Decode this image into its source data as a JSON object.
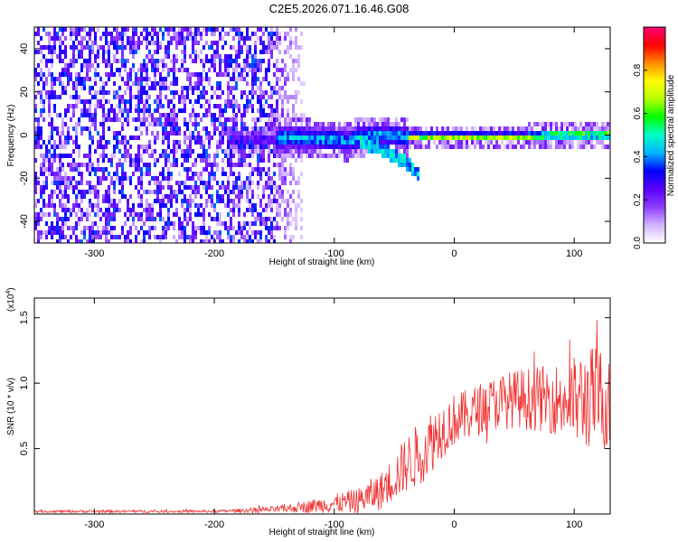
{
  "title": "C2E5.2026.071.16.46.G08",
  "chart_data": [
    {
      "type": "heatmap",
      "xlabel": "Height of straight line (km)",
      "ylabel": "Frequency (Hz)",
      "xlim": [
        -350,
        130
      ],
      "ylim": [
        -50,
        50
      ],
      "xticks": [
        -300,
        -200,
        -100,
        0,
        100
      ],
      "yticks": [
        -40,
        -20,
        0,
        20,
        40
      ],
      "colorbar": {
        "label": "Normalized spectral amplitude",
        "range": [
          0,
          1
        ],
        "ticks": [
          "0.0",
          "0.2",
          "0.4",
          "0.6",
          "0.8"
        ],
        "tick_values": [
          0,
          0.2,
          0.4,
          0.6,
          0.8
        ],
        "colors": [
          "#ffffff",
          "#d2b4ff",
          "#8c3cff",
          "#5a00ff",
          "#0000ff",
          "#00b4ff",
          "#00ffc8",
          "#00ff00",
          "#b4ff00",
          "#ffff00",
          "#ff8c00",
          "#ff0000",
          "#ff0078"
        ]
      },
      "ridge": {
        "x": [
          -185,
          -160,
          -150,
          -140,
          -130,
          -120,
          -110,
          -100,
          -90,
          -80,
          -70,
          -60,
          -50,
          -40,
          -30,
          -20,
          -10,
          0,
          20,
          40,
          60,
          80,
          100,
          120,
          130
        ],
        "y": [
          -2,
          -1,
          -1,
          0,
          0,
          -1,
          -1,
          -1,
          -2,
          0,
          1,
          1,
          1,
          0,
          0,
          0,
          0,
          0,
          0,
          0,
          0,
          1,
          1,
          1,
          1
        ]
      },
      "branch": {
        "x": [
          -80,
          -70,
          -60,
          -50,
          -40,
          -35,
          -30
        ],
        "y": [
          -2,
          -4,
          -6,
          -9,
          -12,
          -15,
          -18
        ]
      }
    },
    {
      "type": "line",
      "xlabel": "Height of straight line (km)",
      "ylabel": "SNR (10 * v/v)",
      "yscale_label": "(x10",
      "yscale_exp": "4",
      "yscale_close": ")",
      "xlim": [
        -350,
        130
      ],
      "ylim": [
        0,
        1.65
      ],
      "xticks": [
        -300,
        -200,
        -100,
        0,
        100
      ],
      "yticks": [
        "0.5",
        "1.0",
        "1.5"
      ],
      "ytick_values": [
        0.5,
        1.0,
        1.5
      ],
      "series": [
        {
          "color": "#f03030",
          "x": [
            -350,
            -300,
            -250,
            -200,
            -160,
            -140,
            -120,
            -100,
            -80,
            -60,
            -50,
            -40,
            -30,
            -20,
            -10,
            0,
            10,
            20,
            30,
            40,
            50,
            60,
            70,
            80,
            90,
            100,
            110,
            120,
            130
          ],
          "y": [
            0.02,
            0.02,
            0.02,
            0.02,
            0.03,
            0.04,
            0.06,
            0.08,
            0.1,
            0.18,
            0.28,
            0.38,
            0.45,
            0.55,
            0.65,
            0.72,
            0.75,
            0.8,
            0.84,
            0.86,
            0.88,
            0.88,
            0.88,
            0.88,
            0.87,
            0.86,
            0.88,
            0.9,
            0.85
          ],
          "spread": [
            0.01,
            0.01,
            0.01,
            0.01,
            0.02,
            0.03,
            0.05,
            0.07,
            0.1,
            0.15,
            0.18,
            0.22,
            0.25,
            0.25,
            0.22,
            0.2,
            0.2,
            0.2,
            0.2,
            0.22,
            0.22,
            0.24,
            0.25,
            0.26,
            0.3,
            0.35,
            0.4,
            0.4,
            0.4
          ]
        }
      ]
    }
  ]
}
